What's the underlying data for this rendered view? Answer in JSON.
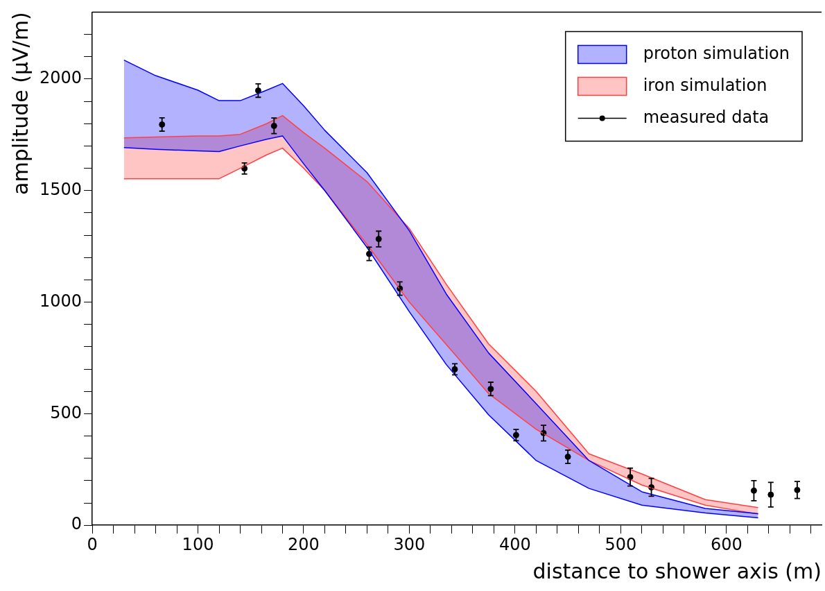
{
  "chart_data": {
    "type": "scatter",
    "xlabel": "distance to shower axis (m)",
    "ylabel": "amplitude (µV/m)",
    "xlim": [
      0,
      690
    ],
    "ylim": [
      0,
      2300
    ],
    "xticks": [
      0,
      {
        "value": 20,
        "label": null
      },
      {
        "value": 40,
        "label": null
      },
      {
        "value": 60,
        "label": null
      },
      {
        "value": 80,
        "label": null
      },
      100,
      {
        "value": 120,
        "label": null
      },
      {
        "value": 140,
        "label": null
      },
      {
        "value": 160,
        "label": null
      },
      {
        "value": 180,
        "label": null
      },
      200,
      {
        "value": 220,
        "label": null
      },
      {
        "value": 240,
        "label": null
      },
      {
        "value": 260,
        "label": null
      },
      {
        "value": 280,
        "label": null
      },
      300,
      {
        "value": 320,
        "label": null
      },
      {
        "value": 340,
        "label": null
      },
      {
        "value": 360,
        "label": null
      },
      {
        "value": 380,
        "label": null
      },
      400,
      {
        "value": 420,
        "label": null
      },
      {
        "value": 440,
        "label": null
      },
      {
        "value": 460,
        "label": null
      },
      {
        "value": 480,
        "label": null
      },
      500,
      {
        "value": 520,
        "label": null
      },
      {
        "value": 540,
        "label": null
      },
      {
        "value": 560,
        "label": null
      },
      {
        "value": 580,
        "label": null
      },
      600,
      {
        "value": 620,
        "label": null
      },
      {
        "value": 640,
        "label": null
      },
      {
        "value": 660,
        "label": null
      },
      {
        "value": 680,
        "label": null
      }
    ],
    "yticks": [
      0,
      {
        "value": 100,
        "label": null
      },
      {
        "value": 200,
        "label": null
      },
      {
        "value": 300,
        "label": null
      },
      {
        "value": 400,
        "label": null
      },
      500,
      {
        "value": 600,
        "label": null
      },
      {
        "value": 700,
        "label": null
      },
      {
        "value": 800,
        "label": null
      },
      {
        "value": 900,
        "label": null
      },
      1000,
      {
        "value": 1100,
        "label": null
      },
      {
        "value": 1200,
        "label": null
      },
      {
        "value": 1300,
        "label": null
      },
      {
        "value": 1400,
        "label": null
      },
      1500,
      {
        "value": 1600,
        "label": null
      },
      {
        "value": 1700,
        "label": null
      },
      {
        "value": 1800,
        "label": null
      },
      {
        "value": 1900,
        "label": null
      },
      2000,
      {
        "value": 2100,
        "label": null
      },
      {
        "value": 2200,
        "label": null
      }
    ],
    "grid": false,
    "legend": "top right",
    "series": [
      {
        "type": "line",
        "color": "#0000ff",
        "x": [
          30,
          60,
          100,
          120,
          140,
          165,
          180,
          200,
          220,
          260,
          300,
          335,
          375,
          420,
          470,
          520,
          580,
          630
        ],
        "values": [
          1693,
          1685,
          1678,
          1675,
          1700,
          1730,
          1745,
          1620,
          1500,
          1245,
          957,
          720,
          495,
          290,
          165,
          90,
          55,
          33
        ]
      },
      {
        "name": "proton simulation",
        "type": "area",
        "color": "#0000ff",
        "x": [
          30,
          60,
          100,
          120,
          140,
          165,
          180,
          200,
          220,
          260,
          300,
          335,
          375,
          420,
          470,
          520,
          580,
          630
        ],
        "values": [
          2085,
          2015,
          1950,
          1903,
          1903,
          1950,
          1980,
          1880,
          1770,
          1580,
          1320,
          1036,
          772,
          545,
          290,
          150,
          75,
          52
        ]
      },
      {
        "type": "line",
        "color": "#ff4040",
        "x": [
          30,
          60,
          100,
          120,
          140,
          165,
          180,
          200,
          220,
          260,
          300,
          335,
          375,
          420,
          470,
          520,
          580,
          630
        ],
        "values": [
          1553,
          1553,
          1553,
          1553,
          1600,
          1660,
          1690,
          1600,
          1500,
          1258,
          1000,
          810,
          590,
          430,
          290,
          180,
          90,
          50
        ]
      },
      {
        "name": "iron simulation",
        "type": "area",
        "color": "#ff4040",
        "x": [
          30,
          60,
          100,
          120,
          140,
          165,
          180,
          200,
          220,
          260,
          300,
          335,
          375,
          420,
          470,
          520,
          580,
          630
        ],
        "values": [
          1736,
          1740,
          1745,
          1745,
          1752,
          1800,
          1836,
          1760,
          1690,
          1540,
          1330,
          1080,
          813,
          600,
          320,
          230,
          115,
          79
        ]
      },
      {
        "name": "measured data",
        "type": "scatter",
        "color": "#000000",
        "marker": "circle",
        "x": [
          66,
          144,
          157,
          172,
          262,
          271,
          291,
          343,
          377,
          401,
          427,
          450,
          509,
          529,
          626,
          642,
          667
        ],
        "values": [
          1796,
          1599,
          1948,
          1790,
          1216,
          1283,
          1061,
          699,
          611,
          404,
          413,
          307,
          216,
          170,
          155,
          137,
          158
        ],
        "errors": [
          30,
          25,
          30,
          35,
          30,
          35,
          30,
          25,
          30,
          25,
          35,
          30,
          40,
          40,
          45,
          55,
          38
        ]
      }
    ]
  }
}
